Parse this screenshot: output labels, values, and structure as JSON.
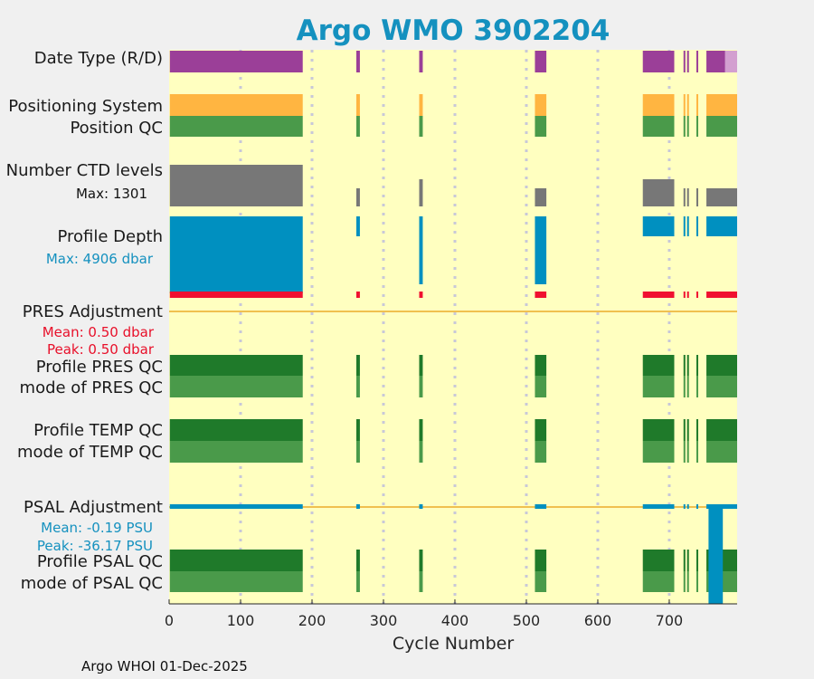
{
  "colors": {
    "background": "#f0f0f0",
    "plot_bg": "#ffffc0",
    "title": "#1591bf",
    "delayed_mode": "#9b3f98",
    "real_time": "#d39fd0",
    "positioning": "#ffb541",
    "position_qc": "#4a9a4a",
    "ctd_levels": "#777777",
    "profile_depth": "#0090c0",
    "pres_adjust": "#f0c050",
    "pres_bar": "#f01030",
    "qc_dark": "#1f7a2a",
    "qc_mid": "#4a9a4a",
    "qc_bad": "#8c4a1e",
    "qc_red": "#e0202f",
    "psal_adjust": "#0090c0",
    "grid": "#c8c8d8"
  },
  "chart_data": {
    "type": "table",
    "title": "Argo WMO 3902204",
    "xlabel": "Cycle Number",
    "xlim": [
      0,
      795
    ],
    "xticks": [
      0,
      100,
      200,
      300,
      400,
      500,
      600,
      700
    ],
    "xtick_labels": [
      "0",
      "100",
      "200",
      "300",
      "400",
      "500",
      "600",
      "700"
    ],
    "grid_x": [
      100,
      200,
      300,
      400,
      500,
      600,
      700
    ],
    "rows": [
      {
        "key": "date_type",
        "label": "Date Type (R/D)"
      },
      {
        "key": "positioning",
        "label": "Positioning System"
      },
      {
        "key": "position_qc",
        "label": "Position QC"
      },
      {
        "key": "ctd_levels",
        "label": "Number CTD levels",
        "annotation": "Max: 1301"
      },
      {
        "key": "profile_depth",
        "label": "Profile Depth",
        "annotation": "Max: 4906 dbar"
      },
      {
        "key": "pres_adjustment",
        "label": "PRES Adjustment",
        "mean": "Mean: 0.50 dbar",
        "peak": "Peak: 0.50 dbar"
      },
      {
        "key": "profile_pres_qc",
        "label": "Profile PRES QC"
      },
      {
        "key": "mode_pres_qc",
        "label": "mode of PRES QC"
      },
      {
        "key": "profile_temp_qc",
        "label": "Profile TEMP QC"
      },
      {
        "key": "mode_temp_qc",
        "label": "mode of TEMP QC"
      },
      {
        "key": "psal_adjustment",
        "label": "PSAL Adjustment",
        "mean": "Mean: -0.19 PSU",
        "peak": "Peak: -36.17 PSU"
      },
      {
        "key": "profile_psal_qc",
        "label": "Profile PSAL QC"
      },
      {
        "key": "mode_psal_qc",
        "label": "mode of PSAL QC"
      }
    ],
    "cycle_blocks": [
      [
        1,
        187
      ],
      [
        262,
        267
      ],
      [
        350,
        355
      ],
      [
        512,
        528
      ],
      [
        663,
        707
      ],
      [
        720,
        722
      ],
      [
        725,
        727
      ],
      [
        738,
        740
      ],
      [
        752,
        795
      ]
    ],
    "real_time_cycles": [
      [
        778,
        795
      ]
    ],
    "max_ctd_levels": 1301,
    "max_depth_dbar": 4906,
    "pres_mean_dbar": 0.5,
    "pres_peak_dbar": 0.5,
    "psal_mean_psu": -0.19,
    "psal_peak_psu": -36.17,
    "psal_large_adjust_cycles": [
      755,
      775
    ]
  },
  "footer": "Argo WHOI 01-Dec-2025"
}
